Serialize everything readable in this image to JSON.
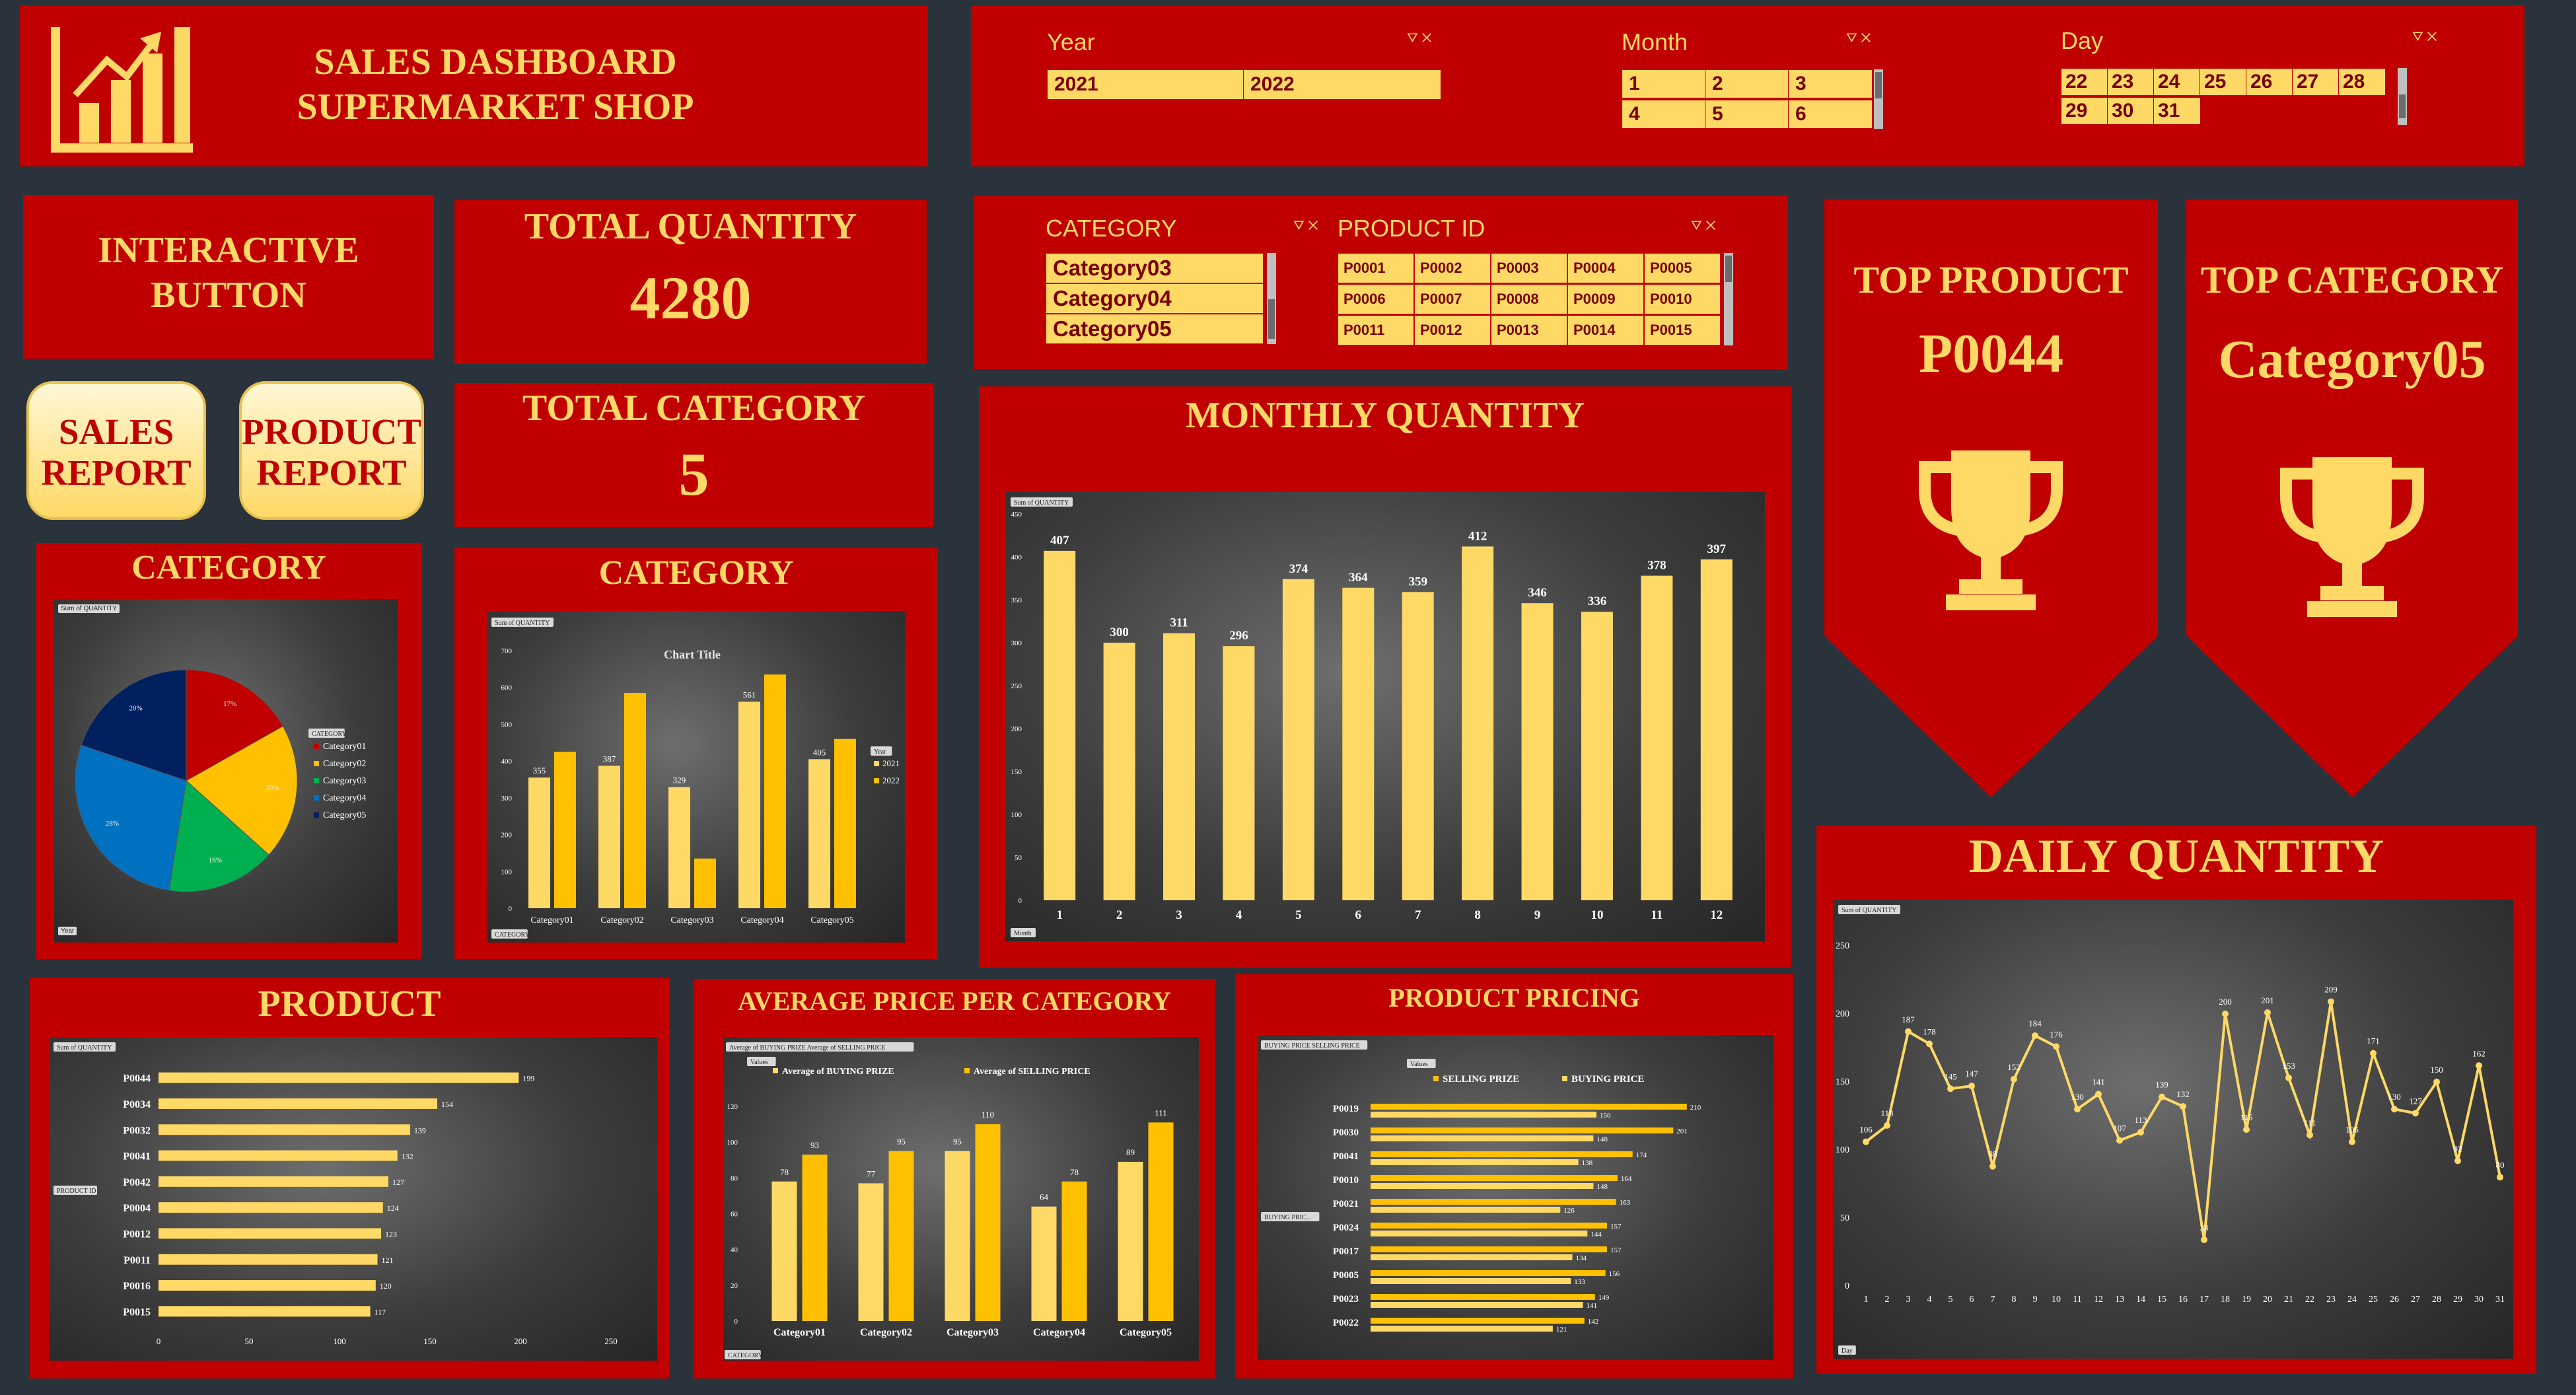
{
  "header": {
    "title_line1": "SALES DASHBOARD",
    "title_line2": "SUPERMARKET SHOP",
    "logo_icon": "bar-chart-growth-icon"
  },
  "slicers": {
    "year": {
      "label": "Year",
      "items": [
        "2021",
        "2022"
      ]
    },
    "month": {
      "label": "Month",
      "items": [
        "1",
        "2",
        "3",
        "4",
        "5",
        "6"
      ]
    },
    "day": {
      "label": "Day",
      "items": [
        "22",
        "23",
        "24",
        "25",
        "26",
        "27",
        "28",
        "29",
        "30",
        "31"
      ]
    },
    "category": {
      "label": "CATEGORY",
      "items": [
        "Category03",
        "Category04",
        "Category05"
      ]
    },
    "product": {
      "label": "PRODUCT ID",
      "items": [
        "P0001",
        "P0002",
        "P0003",
        "P0004",
        "P0005",
        "P0006",
        "P0007",
        "P0008",
        "P0009",
        "P0010",
        "P0011",
        "P0012",
        "P0013",
        "P0014",
        "P0015"
      ]
    }
  },
  "interactive": {
    "line1": "INTERACTIVE",
    "line2": "BUTTON"
  },
  "buttons": {
    "sales_line1": "SALES",
    "sales_line2": "REPORT",
    "product_line1": "PRODUCT",
    "product_line2": "REPORT"
  },
  "kpi": {
    "total_quantity_label": "TOTAL QUANTITY",
    "total_quantity_value": "4280",
    "total_category_label": "TOTAL CATEGORY",
    "total_category_value": "5",
    "top_product_label": "TOP PRODUCT",
    "top_product_value": "P0044",
    "top_category_label": "TOP CATEGORY",
    "top_category_value": "Category05"
  },
  "colors": {
    "panel": "#c00000",
    "accent": "#ffd966",
    "background": "#2a333b"
  },
  "chart_data": [
    {
      "id": "category_pie",
      "type": "pie",
      "title": "CATEGORY",
      "field_tag": "Sum of QUANTITY",
      "filter_tag": "Year",
      "legend_title": "CATEGORY",
      "categories": [
        "Category01",
        "Category02",
        "Category03",
        "Category04",
        "Category05"
      ],
      "values": [
        17,
        20,
        16,
        28,
        20
      ],
      "labels": [
        "17%",
        "20%",
        "16%",
        "28%",
        "20%"
      ],
      "colors": [
        "#c00000",
        "#ffc000",
        "#00b050",
        "#0070c0",
        "#002060"
      ],
      "legend_position": "right"
    },
    {
      "id": "category_bar",
      "type": "bar",
      "title": "CATEGORY",
      "chart_title": "Chart Title",
      "field_tag": "Sum of QUANTITY",
      "filter_tag": "CATEGORY",
      "legend_title": "Year",
      "categories": [
        "Category01",
        "Category02",
        "Category03",
        "Category04",
        "Category05"
      ],
      "series": [
        {
          "name": "2021",
          "values": [
            355,
            387,
            329,
            561,
            405
          ]
        },
        {
          "name": "2022",
          "values": [
            425,
            585,
            135,
            635,
            460
          ]
        }
      ],
      "data_labels_series": 0,
      "yticks": [
        "0",
        "100",
        "200",
        "300",
        "400",
        "500",
        "600",
        "700"
      ],
      "ylim": [
        0,
        700
      ]
    },
    {
      "id": "monthly_quantity",
      "type": "bar",
      "title": "MONTHLY QUANTITY",
      "field_tag": "Sum of QUANTITY",
      "axis_tag": "Month",
      "categories": [
        "1",
        "2",
        "3",
        "4",
        "5",
        "6",
        "7",
        "8",
        "9",
        "10",
        "11",
        "12"
      ],
      "values": [
        407,
        300,
        311,
        296,
        374,
        364,
        359,
        412,
        346,
        336,
        378,
        397
      ],
      "yticks": [
        "0",
        "50",
        "100",
        "150",
        "200",
        "250",
        "300",
        "350",
        "400",
        "450"
      ],
      "ylim": [
        0,
        450
      ]
    },
    {
      "id": "product_bar",
      "type": "bar",
      "orientation": "horizontal",
      "title": "PRODUCT",
      "field_tag": "Sum of QUANTITY",
      "axis_tag": "PRODUCT ID",
      "categories": [
        "P0044",
        "P0034",
        "P0032",
        "P0041",
        "P0042",
        "P0004",
        "P0012",
        "P0011",
        "P0016",
        "P0015"
      ],
      "values": [
        199,
        154,
        139,
        132,
        127,
        124,
        123,
        121,
        120,
        117
      ],
      "xticks": [
        "0",
        "50",
        "100",
        "150",
        "200",
        "250"
      ],
      "xlim": [
        0,
        250
      ]
    },
    {
      "id": "avg_price_category",
      "type": "bar",
      "title": "AVERAGE PRICE PER CATEGORY",
      "field_tag": "Average of BUYING PRIZE  Average of SELLING PRICE",
      "values_tag": "Values",
      "filter_tag": "CATEGORY",
      "categories": [
        "Category01",
        "Category02",
        "Category03",
        "Category04",
        "Category05"
      ],
      "series": [
        {
          "name": "Average of BUYING PRIZE",
          "values": [
            78,
            77,
            95,
            64,
            89
          ]
        },
        {
          "name": "Average of SELLING PRICE",
          "values": [
            93,
            95,
            110,
            78,
            111
          ]
        }
      ],
      "yticks": [
        "0",
        "20",
        "40",
        "60",
        "80",
        "100",
        "120"
      ],
      "ylim": [
        0,
        120
      ],
      "legend_position": "top"
    },
    {
      "id": "product_pricing",
      "type": "bar",
      "orientation": "horizontal",
      "title": "PRODUCT PRICING",
      "field_tag": "BUYING PRICE  SELLING PRICE",
      "values_tag": "Values",
      "axis_tag": "BUYING PRIC...",
      "categories": [
        "P0019",
        "P0030",
        "P0041",
        "P0010",
        "P0021",
        "P0024",
        "P0017",
        "P0005",
        "P0023",
        "P0022"
      ],
      "series": [
        {
          "name": "SELLING PRIZE",
          "values": [
            210,
            201,
            174,
            164,
            163,
            157,
            157,
            156,
            149,
            142
          ]
        },
        {
          "name": "BUYING PRICE",
          "values": [
            150,
            148,
            138,
            148,
            126,
            144,
            134,
            133,
            141,
            121
          ]
        }
      ],
      "xlim": [
        0,
        250
      ],
      "legend_position": "top"
    },
    {
      "id": "daily_quantity",
      "type": "line",
      "title": "DAILY QUANTITY",
      "field_tag": "Sum of QUANTITY",
      "axis_tag": "Day",
      "x": [
        "1",
        "2",
        "3",
        "4",
        "5",
        "6",
        "7",
        "8",
        "9",
        "10",
        "11",
        "12",
        "13",
        "14",
        "15",
        "16",
        "17",
        "18",
        "19",
        "20",
        "21",
        "22",
        "23",
        "24",
        "25",
        "26",
        "27",
        "28",
        "29",
        "30",
        "31"
      ],
      "values": [
        106,
        118,
        187,
        178,
        145,
        147,
        88,
        152,
        184,
        176,
        130,
        141,
        107,
        113,
        139,
        132,
        34,
        200,
        115,
        201,
        153,
        111,
        209,
        106,
        171,
        130,
        127,
        150,
        92,
        162,
        80
      ],
      "yticks": [
        "0",
        "50",
        "100",
        "150",
        "200",
        "250"
      ],
      "ylim": [
        0,
        250
      ]
    }
  ]
}
